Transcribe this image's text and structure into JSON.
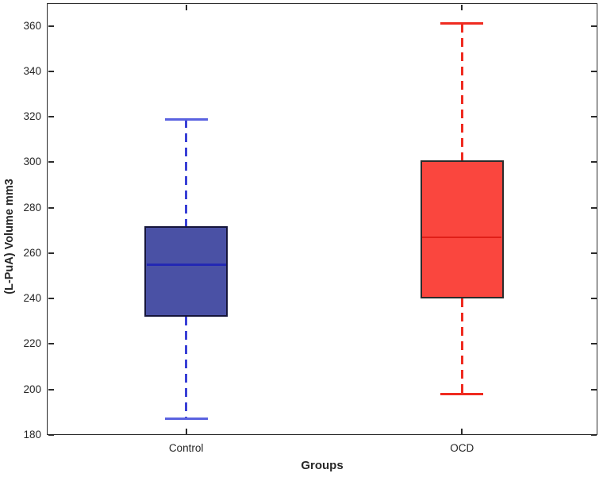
{
  "chart_data": {
    "type": "box",
    "title": "",
    "xlabel": "Groups",
    "ylabel": "(L-PuA) Volume mm3",
    "ylim": [
      180,
      370
    ],
    "yticks": [
      180,
      200,
      220,
      240,
      260,
      280,
      300,
      320,
      340,
      360
    ],
    "categories": [
      "Control",
      "OCD"
    ],
    "grid": false,
    "legend": "none",
    "axis_color": "#2b2b2b",
    "label_color": "#262626",
    "series": [
      {
        "name": "Control",
        "whisker_low": 187,
        "q1": 232,
        "median": 255,
        "q3": 272,
        "whisker_high": 319,
        "fill_color": "#4a51a5",
        "edge_color": "#15153a",
        "median_color": "#2328b4",
        "whisker_color": "#3a41d6",
        "cap_color": "#5a62e0"
      },
      {
        "name": "OCD",
        "whisker_low": 198,
        "q1": 240,
        "median": 267,
        "q3": 301,
        "whisker_high": 361,
        "fill_color": "#fa463e",
        "edge_color": "#2b2b2b",
        "median_color": "#e01f18",
        "whisker_color": "#ef2b20",
        "cap_color": "#ef2b20"
      }
    ]
  }
}
